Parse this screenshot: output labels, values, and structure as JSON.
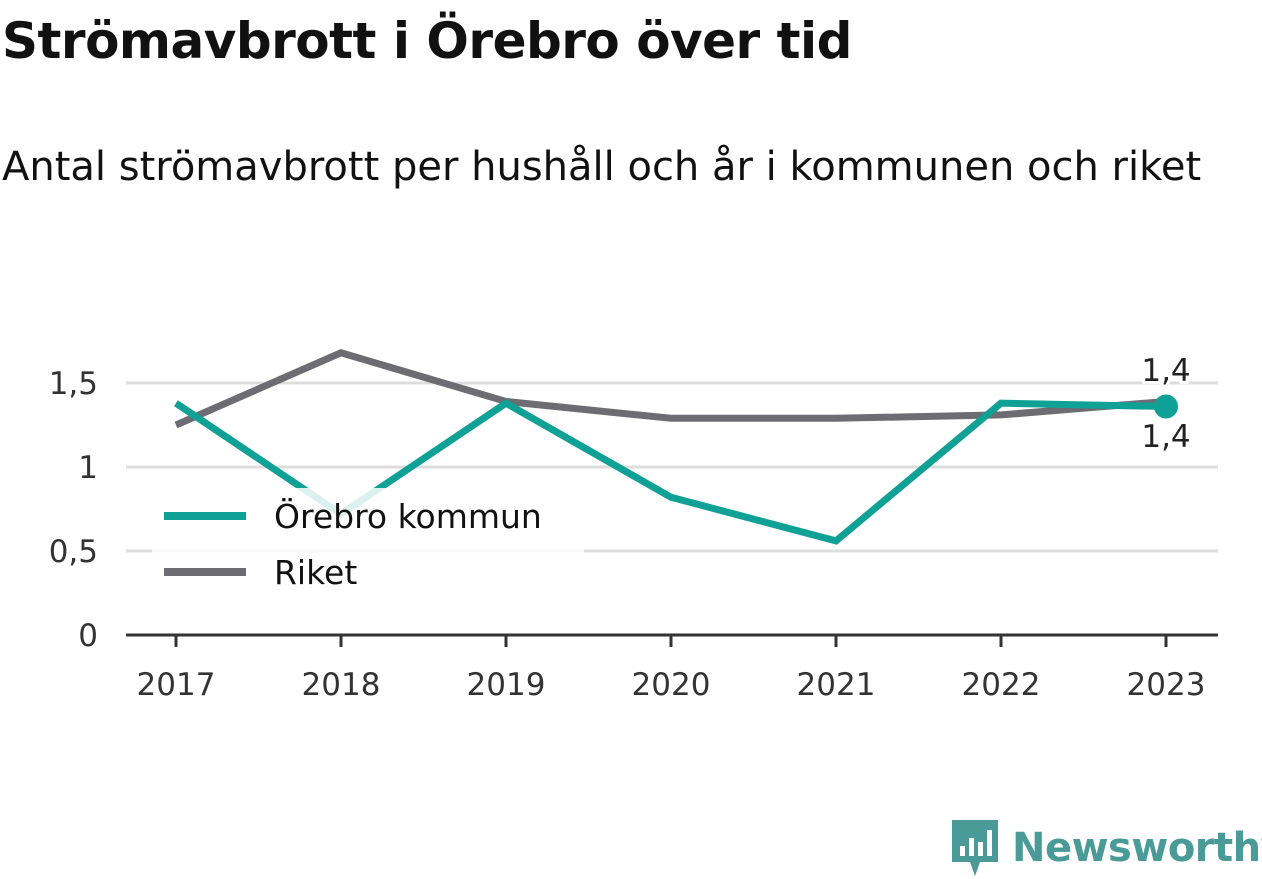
{
  "title": "Strömavbrott i Örebro över tid",
  "subtitle": "Antal strömavbrott per hushåll och år i kommunen och riket",
  "brand": {
    "name": "Newsworthy",
    "icon": "newsworthy-logo-icon",
    "color": "#4a9b97"
  },
  "colors": {
    "orebro": "#0fa195",
    "riket": "#6d6c73",
    "grid": "#dddddd",
    "axis": "#333333"
  },
  "chart_data": {
    "type": "line",
    "categories": [
      "2017",
      "2018",
      "2019",
      "2020",
      "2021",
      "2022",
      "2023"
    ],
    "series": [
      {
        "name": "Örebro kommun",
        "color": "#0fa195",
        "values": [
          1.38,
          0.72,
          1.38,
          0.82,
          0.56,
          1.38,
          1.36
        ]
      },
      {
        "name": "Riket",
        "color": "#6d6c73",
        "values": [
          1.25,
          1.68,
          1.39,
          1.29,
          1.29,
          1.31,
          1.39
        ]
      }
    ],
    "yticks": [
      0,
      0.5,
      1,
      1.5
    ],
    "ytick_labels": [
      "0",
      "0,5",
      "1",
      "1,5"
    ],
    "ylim": [
      0,
      1.75
    ],
    "grid": true,
    "legend_position": "bottom-left",
    "end_labels": [
      {
        "series": "Riket",
        "text": "1,4",
        "position": "above"
      },
      {
        "series": "Örebro kommun",
        "text": "1,4",
        "position": "below"
      }
    ]
  }
}
